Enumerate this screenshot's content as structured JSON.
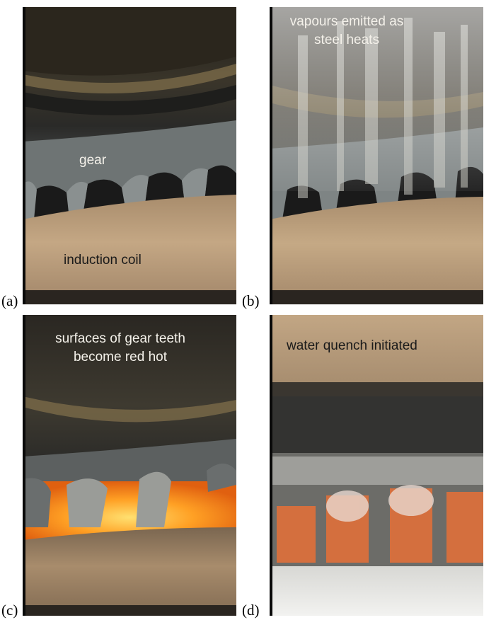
{
  "panels": {
    "a": {
      "label": "(a)",
      "annotations": {
        "gear": "gear",
        "coil": "induction coil"
      }
    },
    "b": {
      "label": "(b)",
      "annotations": {
        "line1": "vapours emitted as",
        "line2": "steel heats"
      }
    },
    "c": {
      "label": "(c)",
      "annotations": {
        "line1": "surfaces of gear teeth",
        "line2": "become red hot"
      }
    },
    "d": {
      "label": "(d)",
      "annotations": {
        "quench": "water quench initiated"
      }
    }
  },
  "colors": {
    "coil": "#b89a7a",
    "steel": "#4a4a48",
    "red_hot": "#ff9a1f",
    "quench_glow": "#e0703a"
  }
}
